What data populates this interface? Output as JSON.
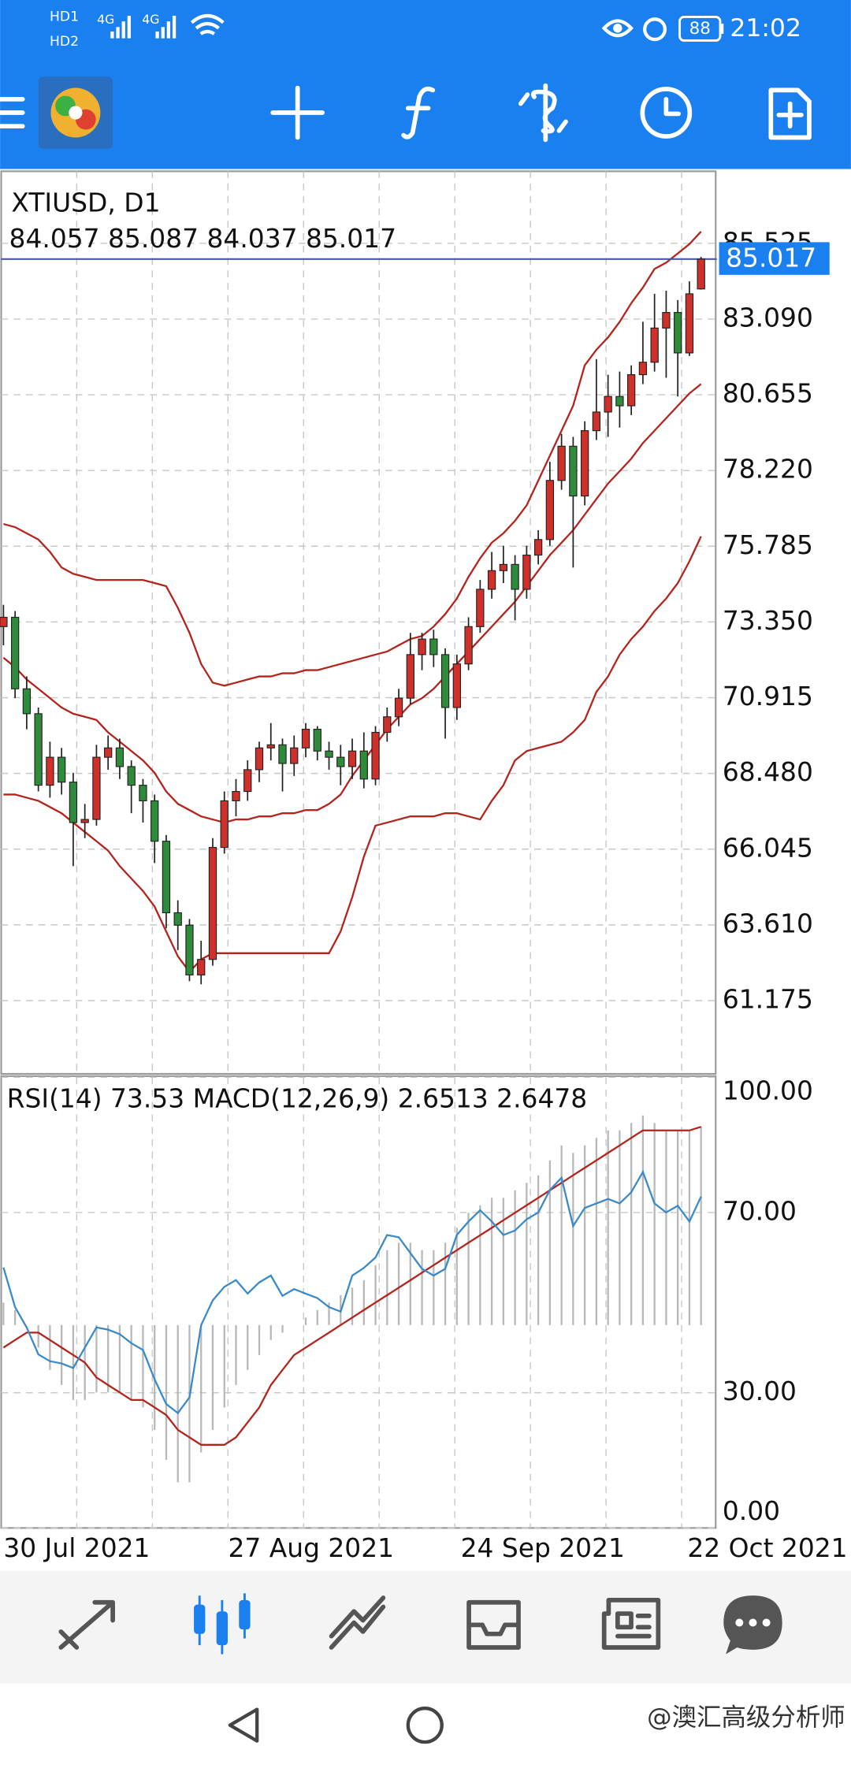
{
  "status_bar": {
    "sim1": "HD1",
    "sim2": "HD2",
    "net1": "4G",
    "net2": "4G",
    "battery": "88",
    "time": "21:02"
  },
  "watermark": "@澳汇高级分析师",
  "chart_data": [
    {
      "type": "candlestick",
      "title": "XTIUSD, D1",
      "subtitle": "84.057 85.087 84.037 85.017",
      "categories": [
        "30 Jul 2021",
        null,
        null,
        null,
        null,
        null,
        null,
        null,
        null,
        null,
        null,
        null,
        null,
        null,
        null,
        null,
        null,
        null,
        null,
        null,
        "27 Aug 2021",
        null,
        null,
        null,
        null,
        null,
        null,
        null,
        null,
        null,
        null,
        null,
        null,
        null,
        null,
        null,
        null,
        null,
        null,
        null,
        "24 Sep 2021",
        null,
        null,
        null,
        null,
        null,
        null,
        null,
        null,
        null,
        null,
        null,
        null,
        null,
        null,
        null,
        null,
        null,
        null,
        null,
        "22 Oct 2021"
      ],
      "open": [
        73.2,
        73.5,
        71.2,
        70.4,
        68.1,
        69.0,
        68.2,
        66.9,
        67.0,
        69.0,
        69.3,
        68.7,
        68.1,
        67.6,
        66.3,
        64.0,
        63.6,
        62.0,
        62.5,
        66.1,
        67.6,
        67.9,
        68.6,
        69.3,
        69.4,
        68.8,
        69.3,
        69.9,
        69.2,
        69.0,
        68.7,
        69.2,
        68.3,
        69.8,
        70.3,
        70.9,
        72.3,
        72.8,
        72.3,
        70.6,
        72.0,
        73.2,
        74.4,
        75.0,
        75.2,
        74.4,
        75.5,
        76.0,
        77.9,
        79.0,
        77.4,
        79.5,
        80.1,
        80.6,
        80.3,
        81.3,
        81.7,
        82.8,
        83.3,
        82.0,
        84.057
      ],
      "high": [
        73.9,
        73.7,
        71.6,
        70.6,
        69.5,
        69.3,
        68.5,
        67.5,
        69.4,
        69.7,
        69.6,
        68.9,
        68.3,
        67.8,
        66.5,
        64.4,
        63.8,
        63.1,
        66.4,
        67.9,
        68.3,
        68.9,
        69.5,
        70.1,
        69.6,
        69.7,
        70.1,
        70.0,
        69.5,
        69.4,
        69.6,
        69.8,
        70.0,
        70.6,
        71.2,
        73.0,
        73.0,
        73.1,
        72.5,
        72.3,
        73.5,
        74.7,
        75.6,
        75.8,
        75.5,
        75.8,
        76.3,
        78.5,
        79.4,
        79.3,
        79.8,
        81.8,
        81.3,
        81.4,
        81.6,
        83.0,
        83.9,
        84.0,
        83.7,
        84.3,
        85.087
      ],
      "low": [
        72.6,
        70.9,
        69.9,
        67.9,
        67.7,
        67.8,
        65.5,
        66.4,
        66.8,
        68.6,
        68.3,
        67.2,
        66.9,
        65.6,
        63.5,
        62.8,
        61.8,
        61.7,
        62.3,
        65.9,
        67.1,
        67.6,
        68.2,
        68.9,
        67.9,
        68.4,
        69.0,
        68.9,
        68.6,
        68.1,
        68.3,
        68.0,
        68.1,
        69.5,
        70.0,
        70.7,
        71.8,
        71.9,
        69.6,
        70.2,
        71.8,
        73.0,
        74.1,
        74.6,
        73.4,
        74.1,
        75.2,
        75.8,
        77.6,
        75.1,
        77.1,
        79.2,
        79.3,
        79.6,
        80.0,
        81.0,
        81.4,
        81.2,
        80.6,
        81.9,
        84.037
      ],
      "close": [
        73.5,
        71.2,
        70.4,
        68.1,
        69.0,
        68.2,
        66.9,
        67.0,
        69.0,
        69.3,
        68.7,
        68.1,
        67.6,
        66.3,
        64.0,
        63.6,
        62.0,
        62.5,
        66.1,
        67.6,
        67.9,
        68.6,
        69.3,
        69.4,
        68.8,
        69.3,
        69.9,
        69.2,
        69.0,
        68.7,
        69.2,
        68.3,
        69.8,
        70.3,
        70.9,
        72.3,
        72.8,
        72.3,
        70.6,
        72.0,
        73.2,
        74.4,
        75.0,
        75.2,
        74.4,
        75.5,
        76.0,
        77.9,
        79.0,
        77.4,
        79.5,
        80.1,
        80.6,
        80.3,
        81.3,
        81.7,
        82.8,
        83.3,
        82.0,
        83.9,
        85.017
      ],
      "up_color": "#d0302a",
      "down_color": "#2e8b3a",
      "series": [
        {
          "type": "line",
          "color": "#b3241c",
          "values": [
            76.5,
            76.4,
            76.2,
            76.0,
            75.6,
            75.1,
            74.9,
            74.8,
            74.7,
            74.7,
            74.7,
            74.7,
            74.7,
            74.6,
            74.5,
            73.8,
            73.0,
            72.0,
            71.4,
            71.3,
            71.4,
            71.5,
            71.6,
            71.6,
            71.7,
            71.7,
            71.8,
            71.8,
            71.9,
            72.0,
            72.1,
            72.2,
            72.3,
            72.4,
            72.6,
            72.8,
            72.9,
            73.2,
            73.6,
            74.1,
            74.8,
            75.4,
            75.9,
            76.2,
            76.6,
            77.1,
            77.9,
            78.7,
            79.5,
            80.3,
            81.6,
            82.1,
            82.5,
            83.0,
            83.6,
            84.1,
            84.7,
            84.9,
            85.2,
            85.5,
            85.9
          ]
        },
        {
          "type": "line",
          "color": "#b3241c",
          "values": [
            72.2,
            71.9,
            71.5,
            71.2,
            70.9,
            70.6,
            70.4,
            70.3,
            70.2,
            69.8,
            69.5,
            69.2,
            68.9,
            68.5,
            67.9,
            67.5,
            67.3,
            67.1,
            67.0,
            66.9,
            67.0,
            67.0,
            67.1,
            67.1,
            67.2,
            67.2,
            67.3,
            67.3,
            67.5,
            67.8,
            68.4,
            68.9,
            69.4,
            69.9,
            70.3,
            70.7,
            70.9,
            71.2,
            71.6,
            72.0,
            72.4,
            72.8,
            73.2,
            73.6,
            74.0,
            74.5,
            75.0,
            75.5,
            75.9,
            76.3,
            76.8,
            77.3,
            77.8,
            78.2,
            78.6,
            79.1,
            79.5,
            79.9,
            80.3,
            80.7,
            81.0
          ]
        },
        {
          "type": "line",
          "color": "#b3241c",
          "values": [
            67.8,
            67.8,
            67.7,
            67.6,
            67.4,
            67.2,
            66.9,
            66.6,
            66.3,
            66.0,
            65.5,
            65.1,
            64.7,
            64.2,
            63.4,
            62.6,
            62.1,
            62.5,
            62.7,
            62.7,
            62.7,
            62.7,
            62.7,
            62.7,
            62.7,
            62.7,
            62.7,
            62.7,
            62.7,
            63.4,
            64.5,
            65.8,
            66.8,
            66.9,
            67.0,
            67.1,
            67.1,
            67.1,
            67.2,
            67.2,
            67.1,
            67.0,
            67.6,
            68.1,
            68.9,
            69.2,
            69.3,
            69.4,
            69.5,
            69.8,
            70.2,
            71.1,
            71.6,
            72.3,
            72.8,
            73.2,
            73.7,
            74.1,
            74.6,
            75.3,
            76.1
          ]
        }
      ],
      "price_line": 85.017,
      "price_line_color": "#4a55b0",
      "price_tag_color": "#1a80f0",
      "ylim": [
        58.82,
        87.84
      ],
      "yticks": [
        85.525,
        {
          "value": 83.09,
          "label": "83.090"
        },
        80.655,
        {
          "value": 78.22,
          "label": "78.220"
        },
        75.785,
        {
          "value": 73.35,
          "label": "73.350"
        },
        70.915,
        {
          "value": 68.48,
          "label": "68.480"
        },
        66.045,
        {
          "value": 63.61,
          "label": "63.610"
        },
        61.175
      ],
      "grid": true
    },
    {
      "type": "line",
      "title": "RSI(14) 73.53 MACD(12,26,9) 2.6513 2.6478",
      "series": [
        {
          "type": "bar",
          "axis": "y2",
          "color": "#b8b8b8",
          "values": [
            0.3,
            0.2,
            0.0,
            -0.3,
            -0.6,
            -0.8,
            -1.0,
            -1.0,
            -0.9,
            -0.9,
            -0.9,
            -1.0,
            -1.1,
            -1.4,
            -1.8,
            -2.1,
            -2.1,
            -1.7,
            -1.4,
            -1.1,
            -0.8,
            -0.6,
            -0.4,
            -0.2,
            -0.1,
            0.0,
            0.1,
            0.2,
            0.3,
            0.4,
            0.5,
            0.6,
            0.8,
            1.0,
            1.1,
            1.1,
            1.0,
            1.0,
            1.1,
            1.3,
            1.5,
            1.6,
            1.7,
            1.7,
            1.8,
            1.9,
            2.0,
            2.2,
            2.4,
            2.3,
            2.4,
            2.5,
            2.6,
            2.6,
            2.7,
            2.8,
            2.7,
            2.6,
            2.6,
            2.6,
            2.6513
          ]
        },
        {
          "type": "line",
          "axis": "y2",
          "color": "#b3241c",
          "values": [
            -0.3,
            -0.2,
            -0.1,
            -0.1,
            -0.2,
            -0.3,
            -0.4,
            -0.5,
            -0.7,
            -0.8,
            -0.9,
            -1.0,
            -1.0,
            -1.1,
            -1.2,
            -1.4,
            -1.5,
            -1.6,
            -1.6,
            -1.6,
            -1.5,
            -1.3,
            -1.1,
            -0.8,
            -0.6,
            -0.4,
            -0.3,
            -0.2,
            -0.1,
            0.0,
            0.1,
            0.2,
            0.3,
            0.4,
            0.5,
            0.6,
            0.7,
            0.8,
            0.9,
            1.0,
            1.1,
            1.2,
            1.3,
            1.4,
            1.5,
            1.6,
            1.7,
            1.8,
            1.9,
            2.0,
            2.1,
            2.2,
            2.3,
            2.4,
            2.5,
            2.6,
            2.6,
            2.6,
            2.6,
            2.6,
            2.6478
          ]
        },
        {
          "type": "line",
          "color": "#3a8ac9",
          "values": [
            57.8,
            49.0,
            44.5,
            38.5,
            37.0,
            36.5,
            35.5,
            40.0,
            44.5,
            44.0,
            43.0,
            41.0,
            39.5,
            33.0,
            27.5,
            25.5,
            29.0,
            45.0,
            50.5,
            53.5,
            55.0,
            52.0,
            54.5,
            56.0,
            51.5,
            53.0,
            52.0,
            51.0,
            49.0,
            48.0,
            56.0,
            57.7,
            60.0,
            65.0,
            64.5,
            61.0,
            57.5,
            56.0,
            57.5,
            65.0,
            68.0,
            70.5,
            68.0,
            65.0,
            66.0,
            68.5,
            70.0,
            75.0,
            77.7,
            67.0,
            71.0,
            72.0,
            73.0,
            72.0,
            74.5,
            79.0,
            72.0,
            70.0,
            71.5,
            68.0,
            73.53
          ]
        }
      ],
      "ylim": [
        0,
        100
      ],
      "yticks": [
        {
          "value": 100,
          "label": "100.00"
        },
        {
          "value": 70,
          "label": "70.00"
        },
        {
          "value": 30,
          "label": "30.00"
        },
        {
          "value": 0,
          "label": "0.00"
        }
      ],
      "y2lim": [
        -2.71,
        3.31
      ],
      "grid": true
    }
  ]
}
